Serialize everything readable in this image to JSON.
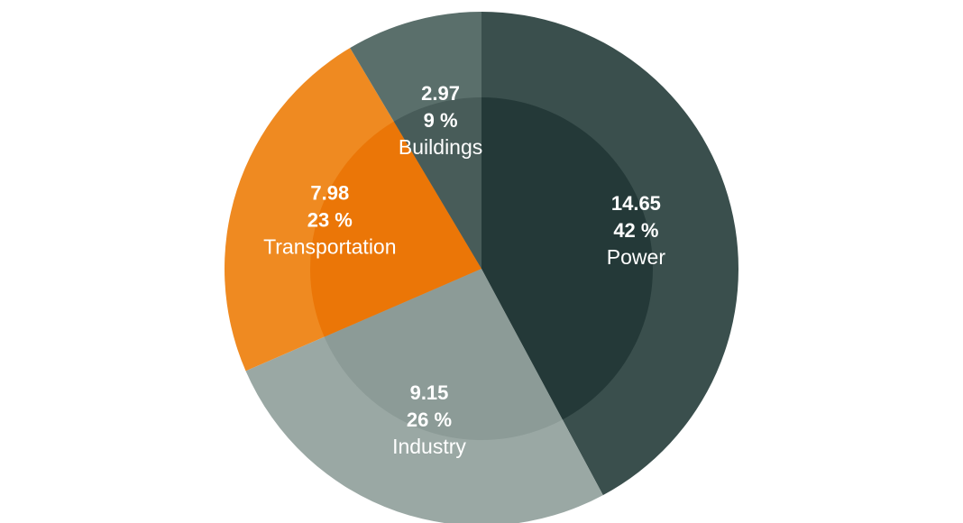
{
  "chart_data": {
    "type": "pie",
    "categories": [
      "Power",
      "Industry",
      "Transportation",
      "Buildings"
    ],
    "values": [
      14.65,
      9.15,
      7.98,
      2.97
    ],
    "value_labels": [
      "14.65",
      "9.15",
      "7.98",
      "2.97"
    ],
    "percent_labels": [
      "42 %",
      "26 %",
      "23 %",
      "9 %"
    ],
    "start_angle": "12 o'clock",
    "direction": "clockwise",
    "inner_highlight": true,
    "colors": {
      "Power": {
        "outer": "#3a4f4d",
        "inner": "#243938"
      },
      "Industry": {
        "outer": "#9aa8a4",
        "inner": "#8c9b97"
      },
      "Transportation": {
        "outer": "#ef8a21",
        "inner": "#eb7607"
      },
      "Buildings": {
        "outer": "#5a6f6b",
        "inner": "#485c59"
      }
    }
  }
}
